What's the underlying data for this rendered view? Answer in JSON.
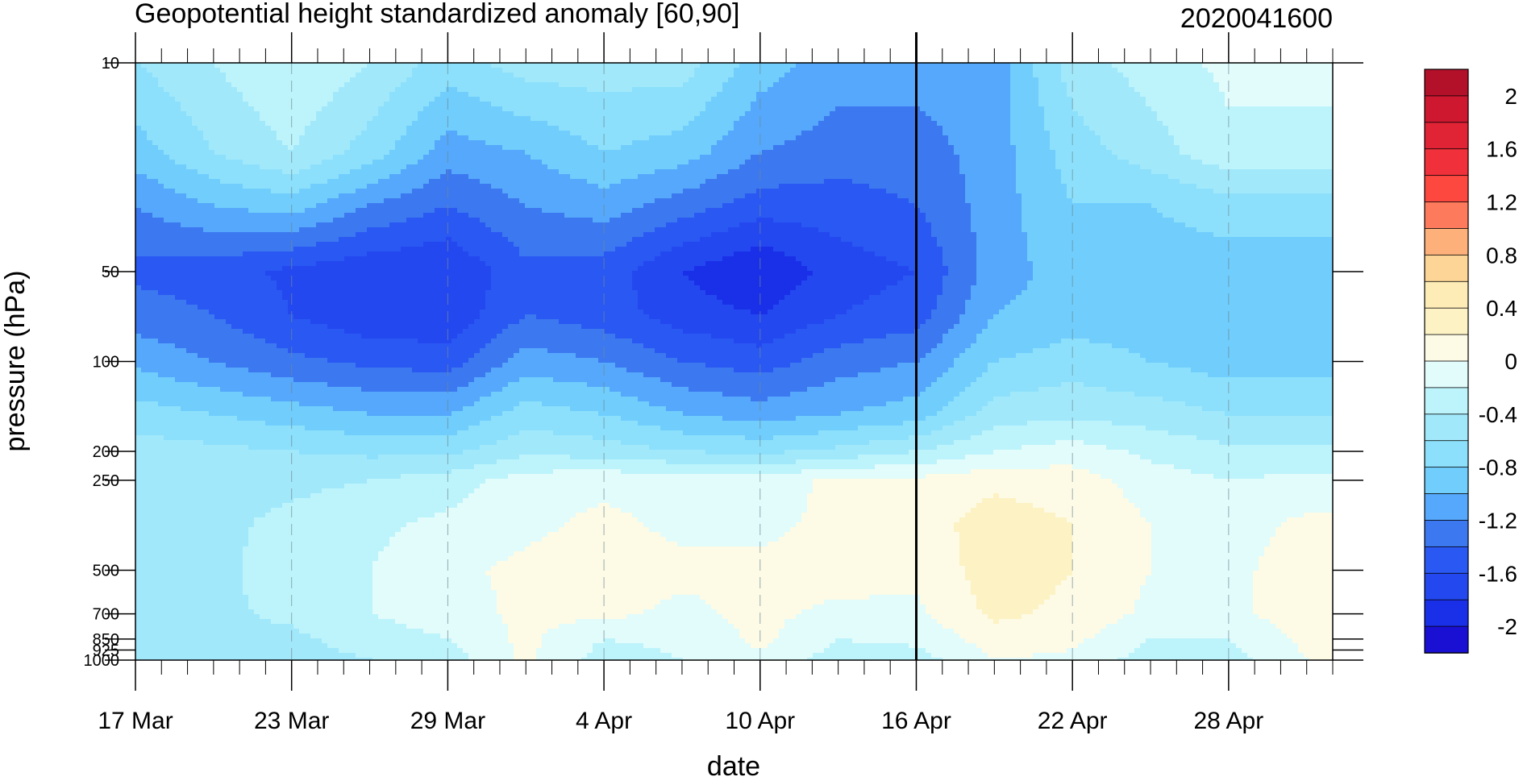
{
  "chart_data": {
    "type": "heatmap",
    "title": "Geopotential height standardized anomaly [60,90]",
    "subtitle": "2020041600",
    "xlabel": "date",
    "ylabel": "pressure (hPa)",
    "x_ticks": [
      "17 Mar",
      "23 Mar",
      "29 Mar",
      "4 Apr",
      "10 Apr",
      "16 Apr",
      "22 Apr",
      "28 Apr"
    ],
    "x_range": [
      "2020-03-17",
      "2020-05-02"
    ],
    "y_scale": "log",
    "y_reversed": true,
    "y_ticks": [
      {
        "value": 10,
        "label": "10"
      },
      {
        "value": 50,
        "label": "50"
      },
      {
        "value": 100,
        "label": "100"
      },
      {
        "value": 200,
        "label": "200"
      },
      {
        "value": 250,
        "label": "250"
      },
      {
        "value": 500,
        "label": "500"
      },
      {
        "value": 700,
        "label": "700"
      },
      {
        "value": 850,
        "label": "850"
      },
      {
        "value": 925,
        "label": "925"
      },
      {
        "value": 1000,
        "label": "1000"
      }
    ],
    "y_range": [
      10,
      1000
    ],
    "vertical_line_date": "2020-04-16",
    "colorbar": {
      "levels": [
        -2.2,
        -2.0,
        -1.8,
        -1.6,
        -1.4,
        -1.2,
        -1.0,
        -0.8,
        -0.6,
        -0.4,
        -0.2,
        0.0,
        0.2,
        0.4,
        0.6,
        0.8,
        1.0,
        1.2,
        1.4,
        1.6,
        1.8,
        2.0,
        2.2
      ],
      "labels": [
        "2",
        "1.6",
        "1.2",
        "0.8",
        "0.4",
        "0",
        "-0.4",
        "-0.8",
        "-1.2",
        "-1.6",
        "-2"
      ],
      "colors": [
        "#1a10d4",
        "#1a2fe8",
        "#2448f0",
        "#2a58f2",
        "#3c78f0",
        "#55a8fb",
        "#70cdfc",
        "#8ce0fb",
        "#a2e8fb",
        "#bdf4fb",
        "#e2fbfb",
        "#fdfbe6",
        "#fdf2c4",
        "#fdecb6",
        "#fdd596",
        "#fdb079",
        "#fd7a5c",
        "#fd4840",
        "#f0303a",
        "#e02335",
        "#cd1830",
        "#b3102a"
      ]
    },
    "samples": {
      "x_days": [
        0,
        3,
        6,
        9,
        12,
        15,
        18,
        21,
        24,
        27,
        30,
        33,
        36,
        39,
        42,
        45
      ],
      "p_levels": [
        10,
        20,
        30,
        50,
        70,
        100,
        150,
        200,
        250,
        350,
        500,
        700,
        850,
        1000
      ],
      "values": [
        [
          -0.6,
          -0.4,
          -0.2,
          -0.4,
          -0.7,
          -0.5,
          -0.5,
          -0.5,
          -0.9,
          -1.1,
          -1.1,
          -1.1,
          -0.5,
          -0.3,
          -0.15,
          -0.15
        ],
        [
          -0.9,
          -0.6,
          -0.4,
          -0.7,
          -1.1,
          -1.0,
          -0.8,
          -0.9,
          -1.2,
          -1.3,
          -1.3,
          -1.1,
          -0.7,
          -0.5,
          -0.25,
          -0.25
        ],
        [
          -1.2,
          -1.0,
          -0.9,
          -1.2,
          -1.4,
          -1.2,
          -1.1,
          -1.3,
          -1.5,
          -1.5,
          -1.4,
          -1.1,
          -0.8,
          -0.8,
          -0.7,
          -0.7
        ],
        [
          -1.45,
          -1.5,
          -1.65,
          -1.75,
          -1.8,
          -1.45,
          -1.5,
          -1.8,
          -2.0,
          -1.7,
          -1.6,
          -1.1,
          -0.9,
          -0.9,
          -0.9,
          -0.9
        ],
        [
          -1.3,
          -1.4,
          -1.6,
          -1.75,
          -1.75,
          -1.4,
          -1.5,
          -1.7,
          -1.8,
          -1.6,
          -1.5,
          -1.0,
          -0.9,
          -0.9,
          -1.0,
          -1.0
        ],
        [
          -1.05,
          -1.2,
          -1.35,
          -1.45,
          -1.5,
          -1.1,
          -1.2,
          -1.4,
          -1.5,
          -1.3,
          -1.2,
          -0.8,
          -0.7,
          -0.8,
          -0.9,
          -0.9
        ],
        [
          -0.7,
          -0.8,
          -0.9,
          -1.0,
          -1.0,
          -0.7,
          -0.8,
          -1.0,
          -1.1,
          -1.0,
          -0.9,
          -0.5,
          -0.45,
          -0.5,
          -0.6,
          -0.6
        ],
        [
          -0.5,
          -0.55,
          -0.6,
          -0.65,
          -0.65,
          -0.45,
          -0.5,
          -0.6,
          -0.65,
          -0.55,
          -0.4,
          -0.2,
          -0.1,
          -0.25,
          -0.35,
          -0.35
        ],
        [
          -0.45,
          -0.45,
          -0.45,
          -0.4,
          -0.3,
          -0.1,
          -0.05,
          -0.1,
          -0.1,
          0.05,
          0.05,
          0.15,
          0.1,
          -0.1,
          -0.2,
          -0.15
        ],
        [
          -0.45,
          -0.45,
          -0.35,
          -0.25,
          -0.15,
          -0.05,
          0.05,
          -0.05,
          -0.05,
          0.05,
          0.1,
          0.3,
          0.2,
          0.0,
          -0.1,
          0.05
        ],
        [
          -0.5,
          -0.45,
          -0.3,
          -0.2,
          -0.05,
          0.05,
          0.1,
          0.05,
          0.05,
          0.1,
          0.05,
          0.3,
          0.2,
          0.0,
          -0.05,
          0.1
        ],
        [
          -0.5,
          -0.45,
          -0.35,
          -0.2,
          -0.1,
          0.05,
          0.05,
          -0.05,
          0.05,
          -0.05,
          -0.05,
          0.25,
          0.15,
          -0.05,
          -0.05,
          0.1
        ],
        [
          -0.5,
          -0.5,
          -0.45,
          -0.3,
          -0.2,
          0.05,
          -0.2,
          -0.15,
          0.05,
          -0.2,
          -0.15,
          0.1,
          0.05,
          -0.2,
          -0.2,
          0.05
        ],
        [
          -0.55,
          -0.55,
          -0.5,
          -0.4,
          -0.3,
          0.05,
          -0.3,
          -0.2,
          -0.05,
          -0.3,
          -0.3,
          0.0,
          -0.05,
          -0.3,
          -0.3,
          0.0
        ]
      ]
    }
  }
}
